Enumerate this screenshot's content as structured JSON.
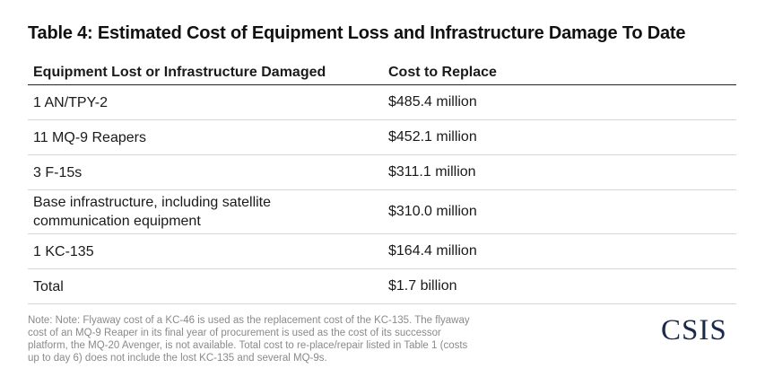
{
  "title": "Table 4: Estimated Cost of Equipment Loss and Infrastructure Damage To Date",
  "table": {
    "headers": [
      "Equipment Lost or Infrastructure Damaged",
      "Cost to Replace"
    ],
    "rows": [
      {
        "item": "1 AN/TPY-2",
        "cost": "$485.4 million"
      },
      {
        "item": "11 MQ-9 Reapers",
        "cost": "$452.1 million"
      },
      {
        "item": "3 F-15s",
        "cost": "$311.1 million"
      },
      {
        "item": "Base infrastructure, including satellite communication equipment",
        "cost": "$310.0 million"
      },
      {
        "item": "1 KC-135",
        "cost": "$164.4 million"
      },
      {
        "item": "Total",
        "cost": "$1.7 billion"
      }
    ]
  },
  "note": "Note: Note: Flyaway cost of a KC-46 is used as the replacement cost of the KC-135. The flyaway cost of an MQ-9 Reaper in its final year of procurement is used as the cost of its successor platform, the MQ-20 Avenger, is not available. Total cost to re-place/repair listed in Table 1 (costs up to day 6) does not include the lost KC-135 and several MQ-9s.",
  "logo": "CSIS"
}
